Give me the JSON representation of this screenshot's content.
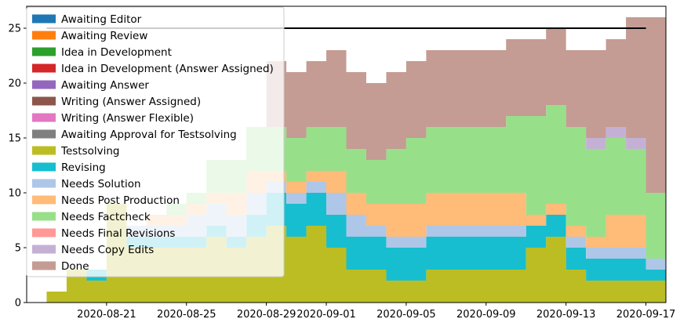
{
  "chart_data": {
    "type": "area",
    "title": "",
    "xlabel": "",
    "ylabel": "",
    "x_ticks": [
      "2020-08-21",
      "2020-08-25",
      "2020-08-29",
      "2020-09-01",
      "2020-09-05",
      "2020-09-09",
      "2020-09-13",
      "2020-09-17"
    ],
    "y_ticks": [
      0,
      5,
      10,
      15,
      20,
      25
    ],
    "ylim": [
      0,
      27
    ],
    "xlim": [
      "2020-08-17",
      "2020-09-18"
    ],
    "grid": false,
    "legend_position": "top-left",
    "reference_line": {
      "y": 25,
      "x_start": "2020-08-18",
      "x_end": "2020-09-17",
      "color": "#000000"
    },
    "x": [
      "2020-08-18",
      "2020-08-19",
      "2020-08-20",
      "2020-08-21",
      "2020-08-22",
      "2020-08-23",
      "2020-08-24",
      "2020-08-25",
      "2020-08-26",
      "2020-08-27",
      "2020-08-28",
      "2020-08-29",
      "2020-08-30",
      "2020-08-31",
      "2020-09-01",
      "2020-09-02",
      "2020-09-03",
      "2020-09-04",
      "2020-09-05",
      "2020-09-06",
      "2020-09-07",
      "2020-09-08",
      "2020-09-09",
      "2020-09-10",
      "2020-09-11",
      "2020-09-12",
      "2020-09-13",
      "2020-09-14",
      "2020-09-15",
      "2020-09-16",
      "2020-09-17"
    ],
    "series": [
      {
        "name": "Awaiting Editor",
        "color": "#1f77b4",
        "values": [
          0,
          0,
          0,
          0,
          0,
          0,
          0,
          0,
          0,
          0,
          0,
          0,
          0,
          0,
          0,
          0,
          0,
          0,
          0,
          0,
          0,
          0,
          0,
          0,
          0,
          0,
          0,
          0,
          0,
          0,
          0
        ]
      },
      {
        "name": "Awaiting Review",
        "color": "#ff7f0e",
        "values": [
          0,
          0,
          0,
          0,
          0,
          0,
          0,
          0,
          0,
          0,
          0,
          0,
          0,
          0,
          0,
          0,
          0,
          0,
          0,
          0,
          0,
          0,
          0,
          0,
          0,
          0,
          0,
          0,
          0,
          0,
          0
        ]
      },
      {
        "name": "Idea in Development",
        "color": "#2ca02c",
        "values": [
          0,
          0,
          0,
          0,
          0,
          0,
          0,
          0,
          0,
          0,
          0,
          0,
          0,
          0,
          0,
          0,
          0,
          0,
          0,
          0,
          0,
          0,
          0,
          0,
          0,
          0,
          0,
          0,
          0,
          0,
          0
        ]
      },
      {
        "name": "Idea in Development (Answer Assigned)",
        "color": "#d62728",
        "values": [
          0,
          0,
          0,
          0,
          0,
          0,
          0,
          0,
          0,
          0,
          0,
          0,
          0,
          0,
          0,
          0,
          0,
          0,
          0,
          0,
          0,
          0,
          0,
          0,
          0,
          0,
          0,
          0,
          0,
          0,
          0
        ]
      },
      {
        "name": "Awaiting Answer",
        "color": "#9467bd",
        "values": [
          0,
          0,
          0,
          0,
          0,
          0,
          0,
          0,
          0,
          0,
          0,
          0,
          0,
          0,
          0,
          0,
          0,
          0,
          0,
          0,
          0,
          0,
          0,
          0,
          0,
          0,
          0,
          0,
          0,
          0,
          0
        ]
      },
      {
        "name": "Writing (Answer Assigned)",
        "color": "#8c564b",
        "values": [
          0,
          0,
          0,
          0,
          0,
          0,
          0,
          0,
          0,
          0,
          0,
          0,
          0,
          0,
          0,
          0,
          0,
          0,
          0,
          0,
          0,
          0,
          0,
          0,
          0,
          0,
          0,
          0,
          0,
          0,
          0
        ]
      },
      {
        "name": "Writing (Answer Flexible)",
        "color": "#e377c2",
        "values": [
          0,
          0,
          0,
          0,
          0,
          0,
          0,
          0,
          0,
          0,
          0,
          0,
          0,
          0,
          0,
          0,
          0,
          0,
          0,
          0,
          0,
          0,
          0,
          0,
          0,
          0,
          0,
          0,
          0,
          0,
          0
        ]
      },
      {
        "name": "Awaiting Approval for Testsolving",
        "color": "#7f7f7f",
        "values": [
          0,
          0,
          0,
          0,
          0,
          0,
          0,
          0,
          0,
          0,
          0,
          0,
          0,
          0,
          0,
          0,
          0,
          0,
          0,
          0,
          0,
          0,
          0,
          0,
          0,
          0,
          0,
          0,
          0,
          0,
          0
        ]
      },
      {
        "name": "Testsolving",
        "color": "#bcbd22",
        "values": [
          1,
          3,
          2,
          9,
          5,
          5,
          5,
          5,
          6,
          5,
          6,
          7,
          6,
          7,
          5,
          3,
          3,
          2,
          2,
          3,
          3,
          3,
          3,
          3,
          5,
          6,
          3,
          2,
          2,
          2,
          2
        ]
      },
      {
        "name": "Revising",
        "color": "#17becf",
        "values": [
          0,
          0,
          1,
          0,
          1,
          1,
          1,
          1,
          1,
          1,
          2,
          3,
          3,
          3,
          3,
          3,
          3,
          3,
          3,
          3,
          3,
          3,
          3,
          3,
          2,
          2,
          2,
          2,
          2,
          2,
          1
        ]
      },
      {
        "name": "Needs Solution",
        "color": "#aec7e8",
        "values": [
          0,
          0,
          0,
          0,
          1,
          1,
          1,
          2,
          2,
          2,
          2,
          1,
          1,
          1,
          2,
          2,
          1,
          1,
          1,
          1,
          1,
          1,
          1,
          1,
          0,
          0,
          1,
          1,
          1,
          1,
          1
        ]
      },
      {
        "name": "Needs Post Production",
        "color": "#ffbb78",
        "values": [
          0,
          0,
          0,
          0,
          0,
          1,
          1,
          1,
          1,
          2,
          2,
          1,
          1,
          1,
          2,
          2,
          2,
          3,
          3,
          3,
          3,
          3,
          3,
          3,
          1,
          1,
          1,
          1,
          3,
          3,
          0
        ]
      },
      {
        "name": "Needs Factcheck",
        "color": "#98df8a",
        "values": [
          0,
          0,
          0,
          0,
          0,
          0,
          1,
          1,
          3,
          3,
          4,
          4,
          4,
          4,
          4,
          4,
          4,
          5,
          6,
          6,
          6,
          6,
          6,
          7,
          9,
          9,
          9,
          8,
          7,
          6,
          6
        ]
      },
      {
        "name": "Needs Final Revisions",
        "color": "#ff9896",
        "values": [
          0,
          0,
          0,
          0,
          0,
          0,
          0,
          0,
          0,
          0,
          0,
          0,
          0,
          0,
          0,
          0,
          0,
          0,
          0,
          0,
          0,
          0,
          0,
          0,
          0,
          0,
          0,
          0,
          0,
          0,
          0
        ]
      },
      {
        "name": "Needs Copy Edits",
        "color": "#c5b0d5",
        "values": [
          0,
          0,
          0,
          0,
          0,
          0,
          0,
          0,
          0,
          0,
          0,
          0,
          0,
          0,
          0,
          0,
          0,
          0,
          0,
          0,
          0,
          0,
          0,
          0,
          0,
          0,
          0,
          1,
          1,
          1,
          0
        ]
      },
      {
        "name": "Done",
        "color": "#c49c94",
        "values": [
          0,
          0,
          0,
          0,
          0,
          0,
          0,
          0,
          0,
          0,
          0,
          6,
          6,
          6,
          7,
          7,
          7,
          7,
          7,
          7,
          7,
          7,
          7,
          7,
          7,
          7,
          7,
          8,
          8,
          11,
          16
        ]
      }
    ]
  }
}
